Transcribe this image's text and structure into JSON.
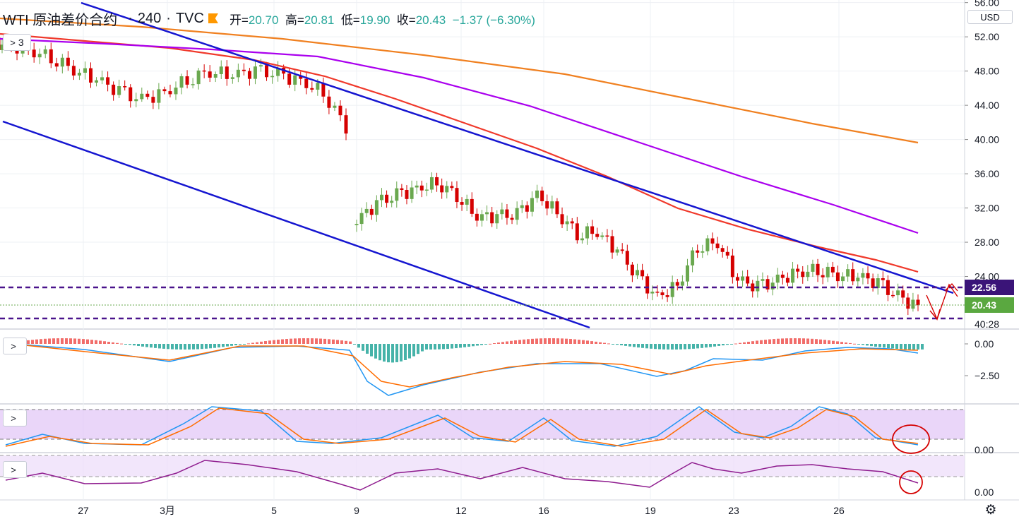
{
  "header": {
    "symbol": "WTI 原油差价合约",
    "interval": "240",
    "source": "TVC",
    "ohlc": {
      "open_label": "开=",
      "open": "20.70",
      "high_label": "高=",
      "high": "20.81",
      "low_label": "低=",
      "low": "19.90",
      "close_label": "收=",
      "close": "20.43",
      "change": "−1.37",
      "change_pct": "(−6.30%)"
    }
  },
  "main_pane": {
    "indicator_toggle": "3",
    "currency": "USD",
    "price_axis_labels": [
      "56.00",
      "52.00",
      "48.00",
      "44.00",
      "40.00",
      "36.00",
      "32.00",
      "28.00",
      "24.00",
      "40:28"
    ],
    "price_tags": {
      "upper_level": "22.56",
      "last_price": "20.43"
    }
  },
  "macd_pane": {
    "axis_labels": [
      "0.00",
      "−2.50"
    ]
  },
  "stoch_pane": {
    "axis_labels": [
      "0.00"
    ]
  },
  "rsi_pane": {
    "axis_labels": [
      "0.00"
    ]
  },
  "time_axis": {
    "labels": [
      "27",
      "3月",
      "5",
      "9",
      "12",
      "16",
      "19",
      "23",
      "26"
    ]
  },
  "colors": {
    "up": "#6aa84f",
    "down": "#d50000",
    "ma_red": "#f0392b",
    "ma_purple": "#aa00ee",
    "ma_orange": "#f08020",
    "channel": "#1515d0",
    "level": "#4a148c",
    "macd_line": "#2196f3",
    "signal_line": "#ff6d00",
    "accent_tag_purple": "#3a1478",
    "accent_tag_green": "#5aa840"
  },
  "chart_data": {
    "type": "candlestick",
    "y_unit": "USD",
    "ylim": [
      16,
      58
    ],
    "candles_close_approx": [
      51.0,
      50.5,
      49.6,
      48.2,
      47.0,
      45.6,
      44.6,
      45.5,
      47.0,
      48.0,
      47.5,
      48.0,
      47.6,
      46.8,
      45.5,
      41.5,
      30.5,
      32.5,
      33.5,
      34.2,
      35.0,
      33.5,
      31.0,
      31.0,
      31.2,
      33.5,
      31.5,
      29.0,
      29.2,
      27.0,
      24.0,
      21.5,
      23.0,
      27.5,
      28.0,
      23.5,
      22.8,
      23.5,
      24.5,
      24.8,
      24.2,
      24.0,
      23.2,
      21.6,
      20.43
    ],
    "levels": [
      22.56,
      18.8
    ],
    "last_price": 20.43
  }
}
